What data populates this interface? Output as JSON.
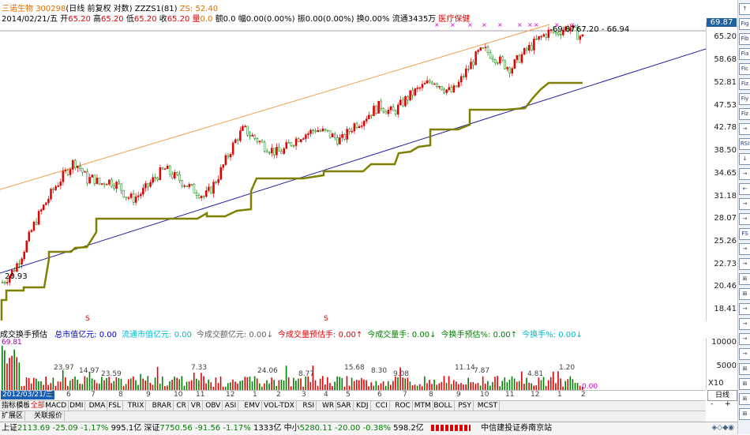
{
  "header": {
    "stock_name": "三诺生物",
    "stock_code": "300298",
    "chart_mode": "(日线 前复权 对数)",
    "indicator_name": "ZZZS1(81)",
    "zs_label": "ZS: 52.40"
  },
  "info": {
    "date": "2014/02/21/五",
    "open_label": "开",
    "open": "65.20",
    "high_label": "高",
    "high": "65.20",
    "low_label": "低",
    "low": "65.20",
    "close_label": "收",
    "close": "65.20",
    "vol_label": "量",
    "vol": "0.0",
    "amt_label": "额",
    "amt": "0.0",
    "amp_label": "幅",
    "amp": "0.00(0.00%)",
    "swing_label": "振",
    "swing": "0.00(0.00%)",
    "turn_label": "换",
    "turn": "0.00%",
    "float_label": "流通",
    "float": "3435万",
    "sector": "医疗保健"
  },
  "price_axis": {
    "labels": [
      "65.20",
      "58.68",
      "52.81",
      "47.53",
      "42.78",
      "38.50",
      "34.65",
      "31.18",
      "28.07",
      "25.26",
      "22.73",
      "20.46",
      "18.41"
    ],
    "current": "69.87",
    "accent": "#2060a0"
  },
  "annotations": {
    "high_label": "69.87",
    "high_range": "67.20 - 66.94",
    "low_label": "20.93"
  },
  "indicator_header": {
    "name": "成交换手预估",
    "items": [
      {
        "label": "总市值亿元:",
        "value": "0.00",
        "color": "#0000c8"
      },
      {
        "label": "流通市值亿元:",
        "value": "0.00",
        "color": "#00b8c8"
      },
      {
        "label": "今成交额亿元:",
        "value": "0.00↓",
        "color": "#606060"
      },
      {
        "label": "今成交量预估手:",
        "value": "0.00↑",
        "color": "#e00000"
      },
      {
        "label": "今成交量手:",
        "value": "0.00↓",
        "color": "#008000"
      },
      {
        "label": "今换手预估%:",
        "value": "0.00↑",
        "color": "#008000"
      },
      {
        "label": "今换手%:",
        "value": "0.00↓",
        "color": "#00b8c8"
      }
    ]
  },
  "volume": {
    "axis_labels": [
      "10000",
      "5000"
    ],
    "x10": "X10",
    "corner_label": "69.81",
    "peak_labels": [
      "23.97",
      "14.97",
      "23.59",
      "7.33",
      "24.06",
      "8.77",
      "15.68",
      "8.30",
      "9.08",
      "11.14",
      "7.87",
      "4.81",
      "1.20"
    ],
    "last_label": "0.00"
  },
  "date_bar": {
    "current_date": "2012/03/21/三",
    "ticks": [
      "4",
      "6",
      "7",
      "8",
      "9",
      "10",
      "11",
      "12",
      "1",
      "2",
      "3",
      "4",
      "5",
      "6",
      "7",
      "8",
      "9",
      "10",
      "11",
      "12",
      "1",
      "2"
    ]
  },
  "tabs": [
    "指标",
    "模板",
    "全部",
    "MACD",
    "DMI",
    "DMA",
    "FSL",
    "TRIX",
    "BRAR",
    "CR",
    "VR",
    "OBV",
    "ASI",
    "EMV",
    "VOL-TDX",
    "RSI",
    "WR",
    "SAR",
    "KDJ",
    "CCI",
    "ROC",
    "MTM",
    "BOLL",
    "PSY",
    "MCST"
  ],
  "active_tab": "全部",
  "sub_tabs": [
    "扩展区",
    "关联报价"
  ],
  "period": {
    "label": "日线",
    "minus": "-",
    "plus": "+"
  },
  "toolbar_buttons": [
    "↑",
    "Fig",
    "Fib",
    "Fia",
    "Fic",
    "Fiz",
    "Fiy",
    "Fiz",
    "→",
    "RSI",
    "↓",
    "→",
    "←",
    "→",
    "→",
    "FS",
    "→",
    "→",
    "⊞",
    "⊞",
    "→",
    "→",
    "→",
    "→",
    "⊞",
    "⊞",
    "⊞",
    "⊞"
  ],
  "status": {
    "sh_label": "上证",
    "sh_value": "2113.69",
    "sh_change": "-25.09",
    "sh_pct": "-1.17%",
    "sh_amt": "995.1亿",
    "sz_label": "深证",
    "sz_value": "7750.56",
    "sz_change": "-91.56",
    "sz_pct": "-1.17%",
    "sz_amt": "1333亿",
    "zx_label": "中小",
    "zx_value": "5280.11",
    "zx_change": "-20.00",
    "zx_pct": "-0.38%",
    "zx_amt": "598.2亿",
    "broker": "中信建投证券南京站"
  },
  "chart_data": {
    "type": "candlestick",
    "y_scale": "log",
    "ylim": [
      17.5,
      70
    ],
    "samples": [
      20.9,
      21.5,
      22.4,
      23.8,
      25.6,
      27.6,
      29.2,
      30.8,
      32.4,
      33.8,
      35.2,
      36.7,
      35.4,
      33.7,
      33.9,
      32.9,
      33.6,
      33.2,
      32.6,
      31.2,
      30.8,
      31.4,
      32.3,
      33.5,
      34.6,
      35.4,
      34.4,
      33.8,
      33.1,
      32.3,
      31.8,
      31.1,
      32.2,
      34.0,
      36.2,
      38.6,
      40.9,
      42.6,
      41.5,
      40.6,
      39.6,
      38.9,
      38.2,
      38.4,
      39.7,
      40.6,
      41.5,
      41.8,
      42.6,
      42.1,
      41.7,
      40.9,
      40.4,
      41.9,
      43.5,
      44.2,
      45.4,
      46.6,
      47.6,
      46.5,
      46.0,
      47.5,
      49.1,
      50.4,
      51.4,
      52.4,
      53.6,
      52.4,
      51.2,
      50.5,
      52.6,
      55.3,
      57.9,
      60.6,
      61.4,
      60.2,
      58.9,
      57.5,
      56.4,
      58.7,
      60.6,
      62.4,
      64.2,
      65.8,
      67.1,
      66.4,
      67.8,
      68.5,
      66.5,
      65.2
    ],
    "fill_color": "#e00000",
    "hollow_color": "#008000"
  }
}
